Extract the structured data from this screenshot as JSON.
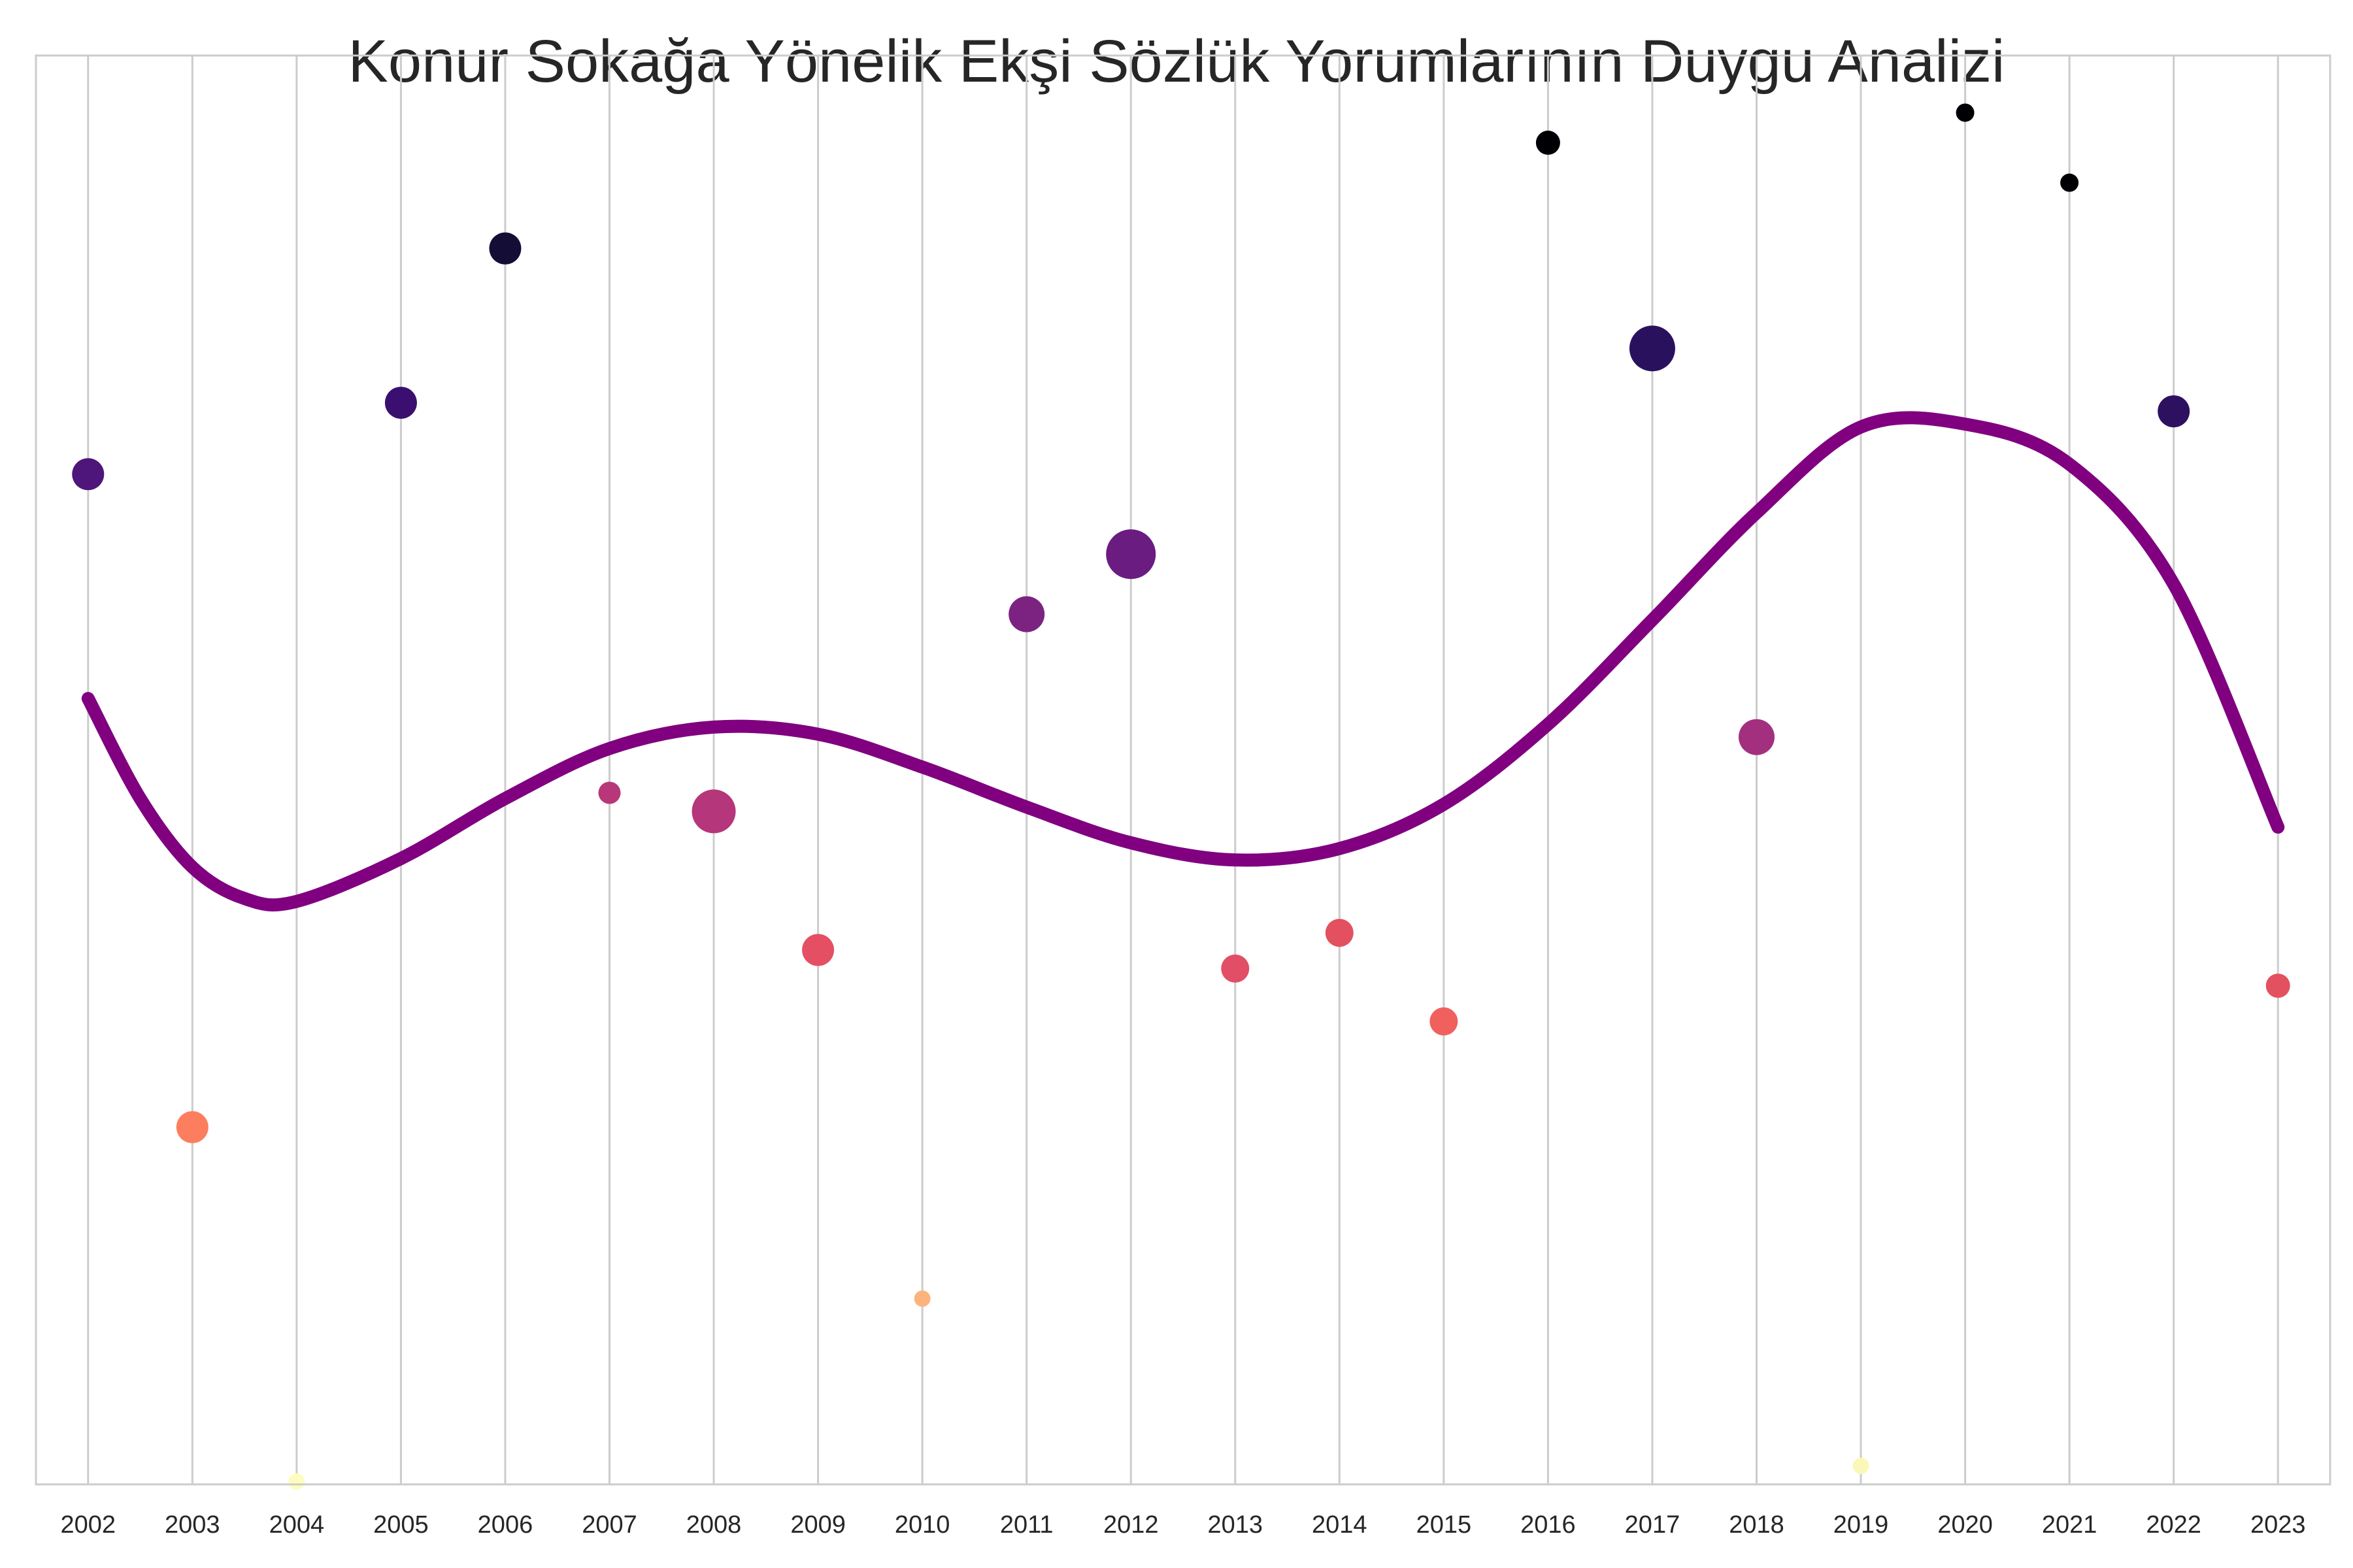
{
  "chart_data": {
    "type": "scatter",
    "title": "Konur Sokağa Yönelik Ekşi Sözlük Yorumlarının Duygu Analizi",
    "xlabel": "",
    "ylabel": "",
    "grid": "vertical",
    "y_ticks_visible": false,
    "xlim": [
      2001.5,
      2023.5
    ],
    "ylim": [
      0,
      1
    ],
    "colormap": "magma",
    "x": [
      2002,
      2003,
      2004,
      2005,
      2006,
      2007,
      2008,
      2009,
      2010,
      2011,
      2012,
      2013,
      2014,
      2015,
      2016,
      2017,
      2018,
      2019,
      2020,
      2021,
      2022,
      2023
    ],
    "x_tick_labels": [
      "2002",
      "2003",
      "2004",
      "2005",
      "2006",
      "2007",
      "2008",
      "2009",
      "2010",
      "2011",
      "2012",
      "2013",
      "2014",
      "2015",
      "2016",
      "2017",
      "2018",
      "2019",
      "2020",
      "2021",
      "2022",
      "2023"
    ],
    "points": [
      {
        "x": 2002,
        "y": 0.707,
        "size": 0.55,
        "color": "#4e157a"
      },
      {
        "x": 2003,
        "y": 0.25,
        "size": 0.55,
        "color": "#fc7e5e"
      },
      {
        "x": 2004,
        "y": 0.002,
        "size": 0.15,
        "color": "#fcfdbf"
      },
      {
        "x": 2005,
        "y": 0.757,
        "size": 0.55,
        "color": "#3b0f70"
      },
      {
        "x": 2006,
        "y": 0.865,
        "size": 0.55,
        "color": "#140e36"
      },
      {
        "x": 2007,
        "y": 0.484,
        "size": 0.3,
        "color": "#b73779"
      },
      {
        "x": 2008,
        "y": 0.471,
        "size": 0.85,
        "color": "#b5367a"
      },
      {
        "x": 2009,
        "y": 0.374,
        "size": 0.55,
        "color": "#e44f64"
      },
      {
        "x": 2010,
        "y": 0.13,
        "size": 0.15,
        "color": "#fdb47c"
      },
      {
        "x": 2011,
        "y": 0.609,
        "size": 0.65,
        "color": "#7c2382"
      },
      {
        "x": 2012,
        "y": 0.651,
        "size": 1.0,
        "color": "#6a1c81"
      },
      {
        "x": 2013,
        "y": 0.361,
        "size": 0.45,
        "color": "#e24e65"
      },
      {
        "x": 2014,
        "y": 0.386,
        "size": 0.45,
        "color": "#e3505f"
      },
      {
        "x": 2015,
        "y": 0.324,
        "size": 0.45,
        "color": "#f0605d"
      },
      {
        "x": 2016,
        "y": 0.939,
        "size": 0.35,
        "color": "#000004"
      },
      {
        "x": 2017,
        "y": 0.795,
        "size": 0.9,
        "color": "#2a115e"
      },
      {
        "x": 2018,
        "y": 0.523,
        "size": 0.65,
        "color": "#a3307e"
      },
      {
        "x": 2019,
        "y": 0.013,
        "size": 0.15,
        "color": "#fbf7b8"
      },
      {
        "x": 2020,
        "y": 0.96,
        "size": 0.2,
        "color": "#000004"
      },
      {
        "x": 2021,
        "y": 0.911,
        "size": 0.2,
        "color": "#000004"
      },
      {
        "x": 2022,
        "y": 0.751,
        "size": 0.55,
        "color": "#2d1160"
      },
      {
        "x": 2023,
        "y": 0.349,
        "size": 0.35,
        "color": "#e3505f"
      }
    ],
    "trend_line": {
      "color": "#800080",
      "x": [
        2002,
        2002.5,
        2003,
        2003.5,
        2004,
        2005,
        2006,
        2007,
        2008,
        2009,
        2010,
        2011,
        2012,
        2013,
        2014,
        2015,
        2016,
        2017,
        2018,
        2019,
        2020,
        2021,
        2022,
        2023
      ],
      "y": [
        0.55,
        0.48,
        0.432,
        0.41,
        0.408,
        0.438,
        0.48,
        0.515,
        0.53,
        0.525,
        0.502,
        0.474,
        0.449,
        0.437,
        0.445,
        0.476,
        0.532,
        0.605,
        0.68,
        0.74,
        0.742,
        0.714,
        0.63,
        0.46
      ]
    }
  }
}
